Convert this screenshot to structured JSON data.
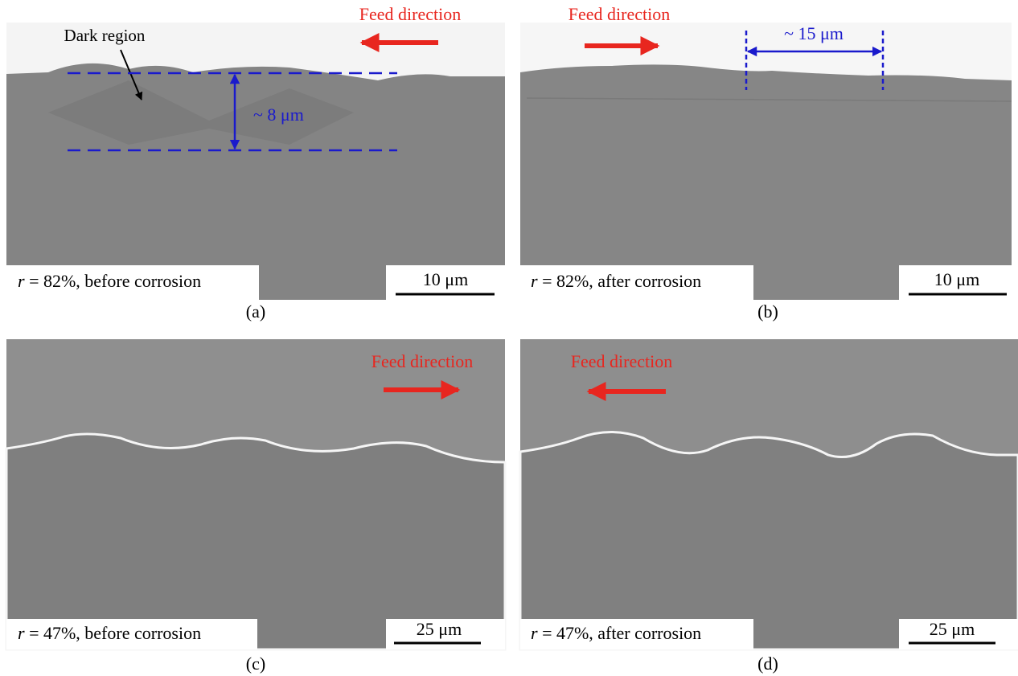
{
  "panels": [
    {
      "label": "(a)",
      "caption_var": "r",
      "caption_text": " = 82%, before corrosion",
      "scale_bar": "10 μm",
      "feed": "Feed direction",
      "annotations": [
        "Dark region",
        "~ 8 μm"
      ]
    },
    {
      "label": "(b)",
      "caption_var": "r",
      "caption_text": " = 82%, after corrosion",
      "scale_bar": "10 μm",
      "feed": "Feed direction",
      "annotations": [
        "~ 15 μm"
      ]
    },
    {
      "label": "(c)",
      "caption_var": "r",
      "caption_text": " = 47%, before corrosion",
      "scale_bar": "25 μm",
      "feed": "Feed direction"
    },
    {
      "label": "(d)",
      "caption_var": "r",
      "caption_text": " = 47%, after corrosion",
      "scale_bar": "25 μm",
      "feed": "Feed direction"
    }
  ]
}
